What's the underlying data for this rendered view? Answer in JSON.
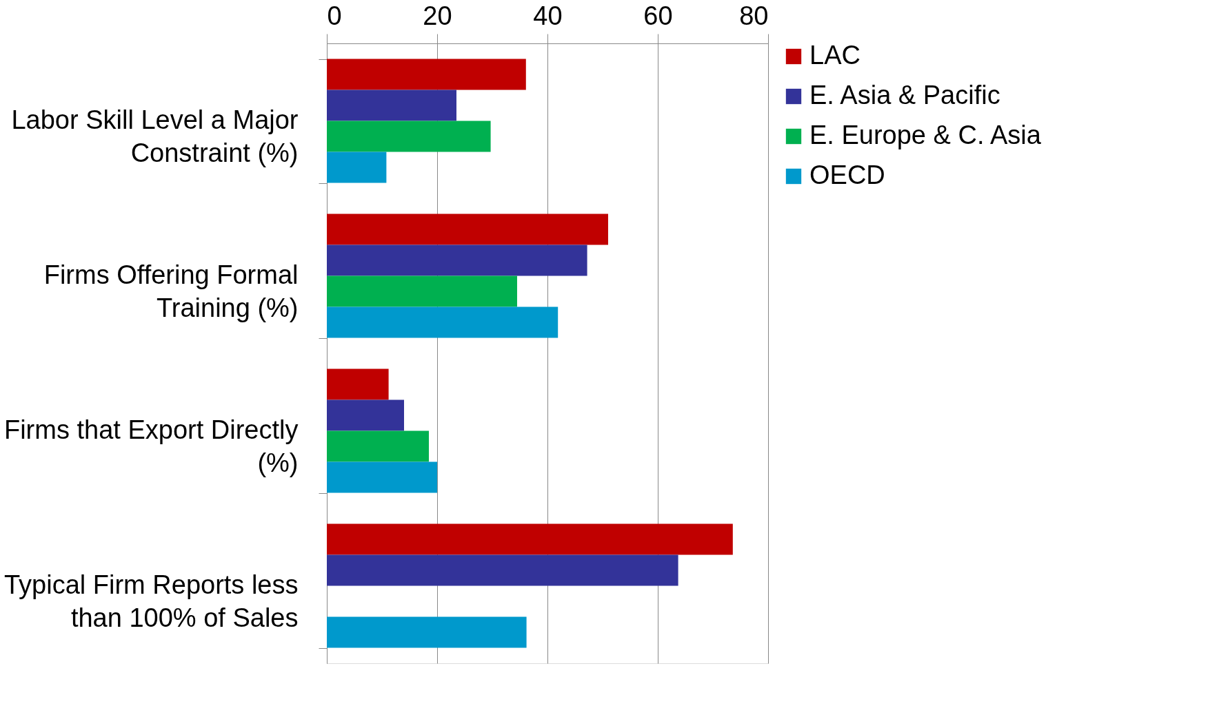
{
  "chart_data": {
    "type": "bar",
    "orientation": "horizontal",
    "categories": [
      "Labor Skill Level a Major Constraint (%)",
      "Firms Offering Formal Training (%)",
      "Firms that Export Directly (%)",
      "Typical Firm Reports less than 100% of Sales"
    ],
    "series": [
      {
        "name": "LAC",
        "color": "#c00000",
        "values": [
          36.1,
          51.0,
          11.2,
          73.6
        ]
      },
      {
        "name": "E. Asia & Pacific",
        "color": "#333399",
        "values": [
          23.5,
          47.2,
          14.0,
          63.7
        ]
      },
      {
        "name": "E. Europe & C. Asia",
        "color": "#00b050",
        "values": [
          29.7,
          34.5,
          18.5,
          null
        ]
      },
      {
        "name": "OECD",
        "color": "#0099cc",
        "values": [
          10.8,
          41.9,
          20.0,
          36.2
        ]
      }
    ],
    "xlim": [
      0,
      80
    ],
    "xticks": [
      0,
      20,
      40,
      60,
      80
    ],
    "grid": "x",
    "legend": "right"
  }
}
